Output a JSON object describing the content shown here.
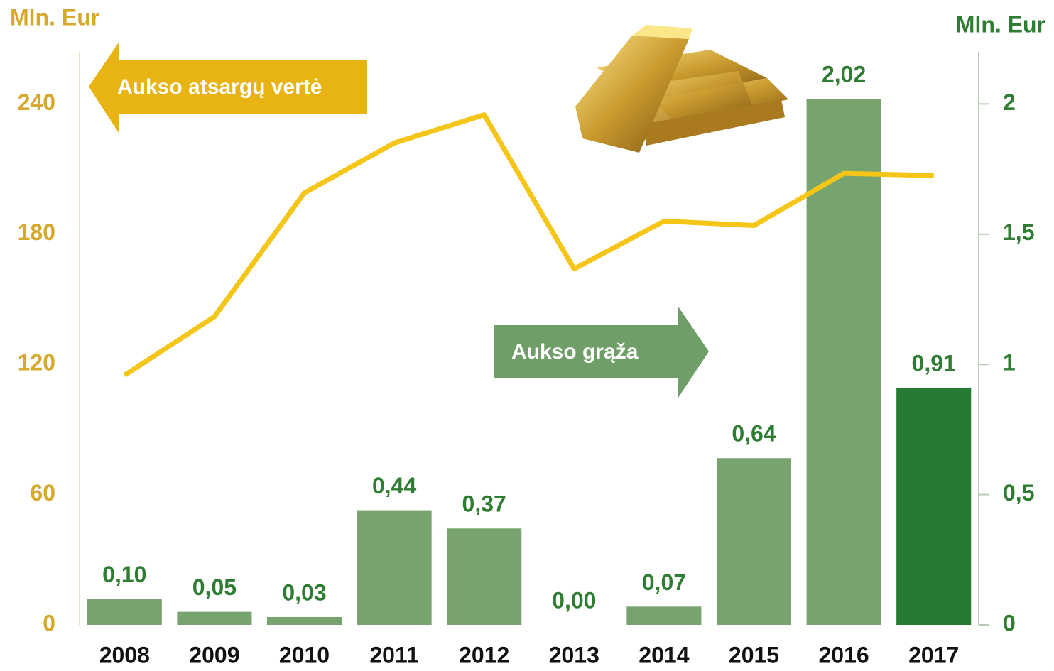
{
  "chart_data": {
    "type": "combo",
    "y_axis_label": "Mln. Eur",
    "y2_axis_label": "Mln. Eur",
    "categories": [
      "2008",
      "2009",
      "2010",
      "2011",
      "2012",
      "2013",
      "2014",
      "2015",
      "2016",
      "2017"
    ],
    "ylim": [
      0,
      264
    ],
    "yticks": [
      0,
      60,
      120,
      180,
      240
    ],
    "y2lim": [
      0,
      2.2
    ],
    "y2ticks": [
      0,
      {
        "value": 0.5,
        "label": "0,5"
      },
      1,
      {
        "value": 1.5,
        "label": "1,5"
      },
      2
    ],
    "axis_color": "#d6a92c",
    "axis2_color": "#2e7d32",
    "series": [
      {
        "name": "Aukso atsargų vertė",
        "type": "line",
        "color": "#f5c518",
        "values": [
          115,
          142,
          199,
          222,
          235,
          164,
          186,
          184,
          208,
          207
        ]
      },
      {
        "name": "Aukso grąža",
        "type": "bar",
        "axis": "y2",
        "color": "#77a36f",
        "colors": [
          "#77a36f",
          "#77a36f",
          "#77a36f",
          "#77a36f",
          "#77a36f",
          "#77a36f",
          "#77a36f",
          "#77a36f",
          "#77a36f",
          "#237a30"
        ],
        "values": [
          0.1,
          0.05,
          0.03,
          0.44,
          0.37,
          0.0,
          0.07,
          0.64,
          2.02,
          0.91
        ],
        "value_labels": [
          "0,10",
          "0,05",
          "0,03",
          "0,44",
          "0,37",
          "0,00",
          "0,07",
          "0,64",
          "2,02",
          "0,91"
        ]
      }
    ]
  }
}
